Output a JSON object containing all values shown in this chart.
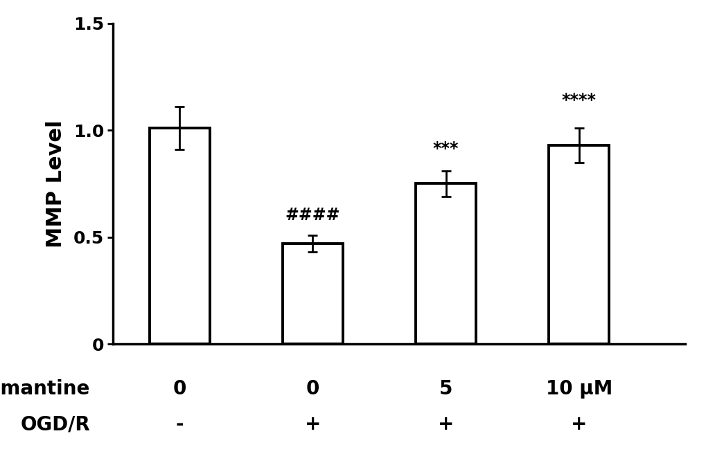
{
  "values": [
    1.01,
    0.47,
    0.75,
    0.93
  ],
  "errors": [
    0.1,
    0.04,
    0.06,
    0.08
  ],
  "bar_color": "#ffffff",
  "bar_edgecolor": "#000000",
  "bar_linewidth": 2.8,
  "bar_width": 0.45,
  "bar_positions": [
    1,
    2,
    3,
    4
  ],
  "ylabel": "MMP Level",
  "ylim": [
    0,
    1.5
  ],
  "yticks": [
    0,
    0.5,
    1.0,
    1.5
  ],
  "ytick_labels": [
    "0",
    "0.5",
    "1.0",
    "1.5"
  ],
  "significance_labels": [
    "",
    "####",
    "***",
    "****"
  ],
  "sig_fontsize": 17,
  "row1_label": "Memantine",
  "row2_label": "OGD/R",
  "row1_values": [
    "0",
    "0",
    "5",
    "10 μM"
  ],
  "row2_values": [
    "-",
    "+",
    "+",
    "+"
  ],
  "label_fontsize": 20,
  "row_val_fontsize": 20,
  "tick_fontsize": 18,
  "ylabel_fontsize": 22,
  "background_color": "#ffffff",
  "errorbar_capsize": 5,
  "errorbar_linewidth": 2.0,
  "errorbar_color": "#000000",
  "xlim": [
    0.5,
    4.8
  ],
  "spine_linewidth": 2.5
}
